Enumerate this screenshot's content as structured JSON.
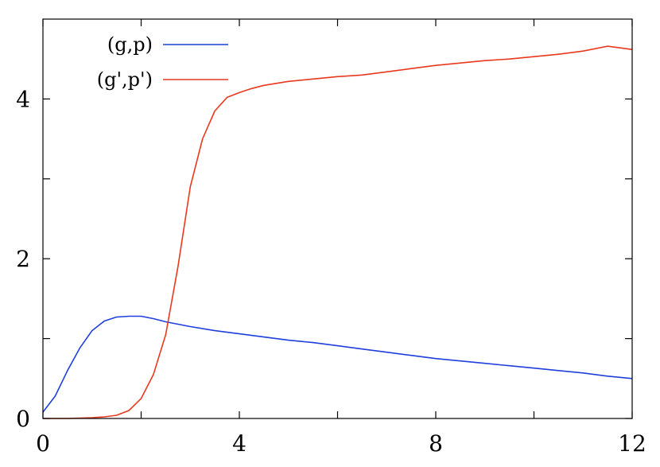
{
  "chart_data": {
    "type": "line",
    "title": "",
    "xlabel": "",
    "ylabel": "",
    "xlim": [
      0,
      12
    ],
    "ylim": [
      0,
      5
    ],
    "x_ticks": [
      0,
      4,
      8,
      12
    ],
    "x_minor_ticks": [
      2,
      6,
      10
    ],
    "y_ticks": [
      0,
      2,
      4
    ],
    "y_minor_ticks": [
      1,
      3
    ],
    "grid": false,
    "legend_position": "top-left",
    "series": [
      {
        "name": "(g,p)",
        "color": "#1f3fdc",
        "x": [
          0,
          0.25,
          0.5,
          0.75,
          1.0,
          1.25,
          1.5,
          1.75,
          2.0,
          2.25,
          2.5,
          3.0,
          3.5,
          4.0,
          4.5,
          5.0,
          5.5,
          6.0,
          6.5,
          7.0,
          7.5,
          8.0,
          8.5,
          9.0,
          9.5,
          10.0,
          10.5,
          11.0,
          11.5,
          12.0
        ],
        "y": [
          0.08,
          0.28,
          0.6,
          0.88,
          1.1,
          1.22,
          1.27,
          1.28,
          1.28,
          1.25,
          1.21,
          1.15,
          1.1,
          1.06,
          1.02,
          0.98,
          0.95,
          0.91,
          0.87,
          0.83,
          0.79,
          0.75,
          0.72,
          0.69,
          0.66,
          0.63,
          0.6,
          0.57,
          0.53,
          0.5
        ]
      },
      {
        "name": "(g',p')",
        "color": "#e8391d",
        "x": [
          0,
          0.5,
          1.0,
          1.25,
          1.5,
          1.75,
          2.0,
          2.25,
          2.5,
          2.75,
          3.0,
          3.25,
          3.5,
          3.75,
          4.0,
          4.25,
          4.5,
          5.0,
          5.5,
          6.0,
          6.5,
          7.0,
          7.5,
          8.0,
          8.5,
          9.0,
          9.5,
          10.0,
          10.5,
          11.0,
          11.5,
          12.0
        ],
        "y": [
          0,
          0,
          0.01,
          0.02,
          0.04,
          0.1,
          0.25,
          0.55,
          1.05,
          1.9,
          2.9,
          3.5,
          3.85,
          4.02,
          4.08,
          4.13,
          4.17,
          4.22,
          4.25,
          4.28,
          4.3,
          4.34,
          4.38,
          4.42,
          4.45,
          4.48,
          4.5,
          4.53,
          4.56,
          4.6,
          4.66,
          4.62
        ]
      }
    ]
  }
}
